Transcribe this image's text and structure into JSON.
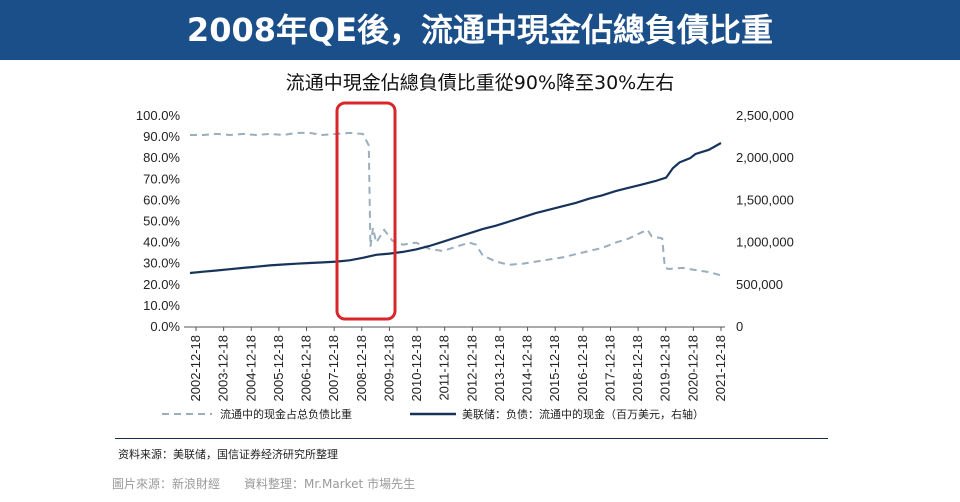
{
  "banner": {
    "title": "2008年QE後，流通中現金佔總負債比重"
  },
  "subtitle": "流通中現金佔總負債比重從90%降至30%左右",
  "source": "资料来源：美联储，国信证券经济研究所整理",
  "credit": "圖片來源：新浪財經　　資料整理：Mr.Market 市場先生",
  "colors": {
    "banner": "#1b4f8a",
    "ratio_series": "#9aaebe",
    "liabilities_series": "#17335c",
    "highlight_box": "#d9262b"
  },
  "chart_data": {
    "type": "line",
    "title": "流通中現金佔總負債比重從90%降至30%左右",
    "x_ticks": [
      "2002-12-18",
      "2003-12-18",
      "2004-12-18",
      "2005-12-18",
      "2006-12-18",
      "2007-12-18",
      "2008-12-18",
      "2009-12-18",
      "2010-12-18",
      "2011-12-18",
      "2012-12-18",
      "2013-12-18",
      "2014-12-18",
      "2015-12-18",
      "2016-12-18",
      "2017-12-18",
      "2018-12-18",
      "2019-12-18",
      "2020-12-18",
      "2021-12-18"
    ],
    "y_left_ticks": [
      "100.0%",
      "90.0%",
      "80.0%",
      "70.0%",
      "60.0%",
      "50.0%",
      "40.0%",
      "30.0%",
      "20.0%",
      "10.0%",
      "0.0%"
    ],
    "y_left_range": [
      0,
      100
    ],
    "y_right_ticks": [
      "2,500,000",
      "2,000,000",
      "1,500,000",
      "1,000,000",
      "500,000",
      "0"
    ],
    "y_right_range": [
      0,
      2500000
    ],
    "series": [
      {
        "name": "流通中的现金占总负债比重",
        "axis": "left",
        "style": "dashed",
        "points": [
          [
            2002.0,
            91
          ],
          [
            2002.5,
            91
          ],
          [
            2003.0,
            91.5
          ],
          [
            2003.5,
            91
          ],
          [
            2004.0,
            91.5
          ],
          [
            2004.5,
            91
          ],
          [
            2005.0,
            91.5
          ],
          [
            2005.5,
            91
          ],
          [
            2006.0,
            92
          ],
          [
            2006.5,
            92
          ],
          [
            2007.0,
            91
          ],
          [
            2007.5,
            91.5
          ],
          [
            2008.0,
            92
          ],
          [
            2008.5,
            91.5
          ],
          [
            2008.72,
            86
          ],
          [
            2008.78,
            38
          ],
          [
            2008.88,
            47
          ],
          [
            2009.0,
            40
          ],
          [
            2009.3,
            46
          ],
          [
            2009.6,
            41
          ],
          [
            2010.0,
            39
          ],
          [
            2010.5,
            40
          ],
          [
            2011.0,
            37
          ],
          [
            2011.5,
            36
          ],
          [
            2012.0,
            38
          ],
          [
            2012.5,
            40
          ],
          [
            2012.75,
            39
          ],
          [
            2013.0,
            34
          ],
          [
            2013.5,
            31
          ],
          [
            2014.0,
            29.5
          ],
          [
            2014.5,
            30
          ],
          [
            2015.0,
            31
          ],
          [
            2015.5,
            32
          ],
          [
            2016.0,
            33
          ],
          [
            2016.5,
            34.5
          ],
          [
            2017.0,
            36
          ],
          [
            2017.5,
            37.5
          ],
          [
            2018.0,
            40
          ],
          [
            2018.5,
            42
          ],
          [
            2019.0,
            45
          ],
          [
            2019.2,
            46
          ],
          [
            2019.35,
            43
          ],
          [
            2019.75,
            42
          ],
          [
            2019.85,
            28
          ],
          [
            2020.0,
            27.5
          ],
          [
            2020.5,
            28
          ],
          [
            2021.0,
            27
          ],
          [
            2021.5,
            26
          ],
          [
            2021.96,
            24.5
          ]
        ]
      },
      {
        "name": "美联储：负债：流通中的现金（百万美元，右轴）",
        "axis": "right",
        "style": "solid",
        "points": [
          [
            2002.0,
            640000
          ],
          [
            2002.5,
            655000
          ],
          [
            2003.0,
            670000
          ],
          [
            2003.5,
            685000
          ],
          [
            2004.0,
            700000
          ],
          [
            2004.5,
            715000
          ],
          [
            2005.0,
            730000
          ],
          [
            2005.5,
            740000
          ],
          [
            2006.0,
            750000
          ],
          [
            2006.5,
            758000
          ],
          [
            2007.0,
            765000
          ],
          [
            2007.5,
            775000
          ],
          [
            2008.0,
            790000
          ],
          [
            2008.5,
            820000
          ],
          [
            2009.0,
            855000
          ],
          [
            2009.5,
            870000
          ],
          [
            2010.0,
            890000
          ],
          [
            2010.5,
            920000
          ],
          [
            2011.0,
            960000
          ],
          [
            2011.5,
            1010000
          ],
          [
            2012.0,
            1060000
          ],
          [
            2012.5,
            1110000
          ],
          [
            2013.0,
            1160000
          ],
          [
            2013.5,
            1200000
          ],
          [
            2014.0,
            1250000
          ],
          [
            2014.5,
            1300000
          ],
          [
            2015.0,
            1350000
          ],
          [
            2015.5,
            1390000
          ],
          [
            2016.0,
            1430000
          ],
          [
            2016.5,
            1470000
          ],
          [
            2017.0,
            1520000
          ],
          [
            2017.5,
            1560000
          ],
          [
            2018.0,
            1610000
          ],
          [
            2018.5,
            1650000
          ],
          [
            2019.0,
            1690000
          ],
          [
            2019.5,
            1730000
          ],
          [
            2019.9,
            1770000
          ],
          [
            2020.15,
            1880000
          ],
          [
            2020.4,
            1950000
          ],
          [
            2020.8,
            2000000
          ],
          [
            2021.0,
            2050000
          ],
          [
            2021.5,
            2100000
          ],
          [
            2021.96,
            2180000
          ]
        ]
      }
    ],
    "legend": [
      "流通中的现金占总负债比重",
      "美联储：负债：流通中的现金（百万美元，右轴）"
    ],
    "legend_position": "bottom",
    "annotation": "red rounded box highlighting 2008 drop"
  }
}
